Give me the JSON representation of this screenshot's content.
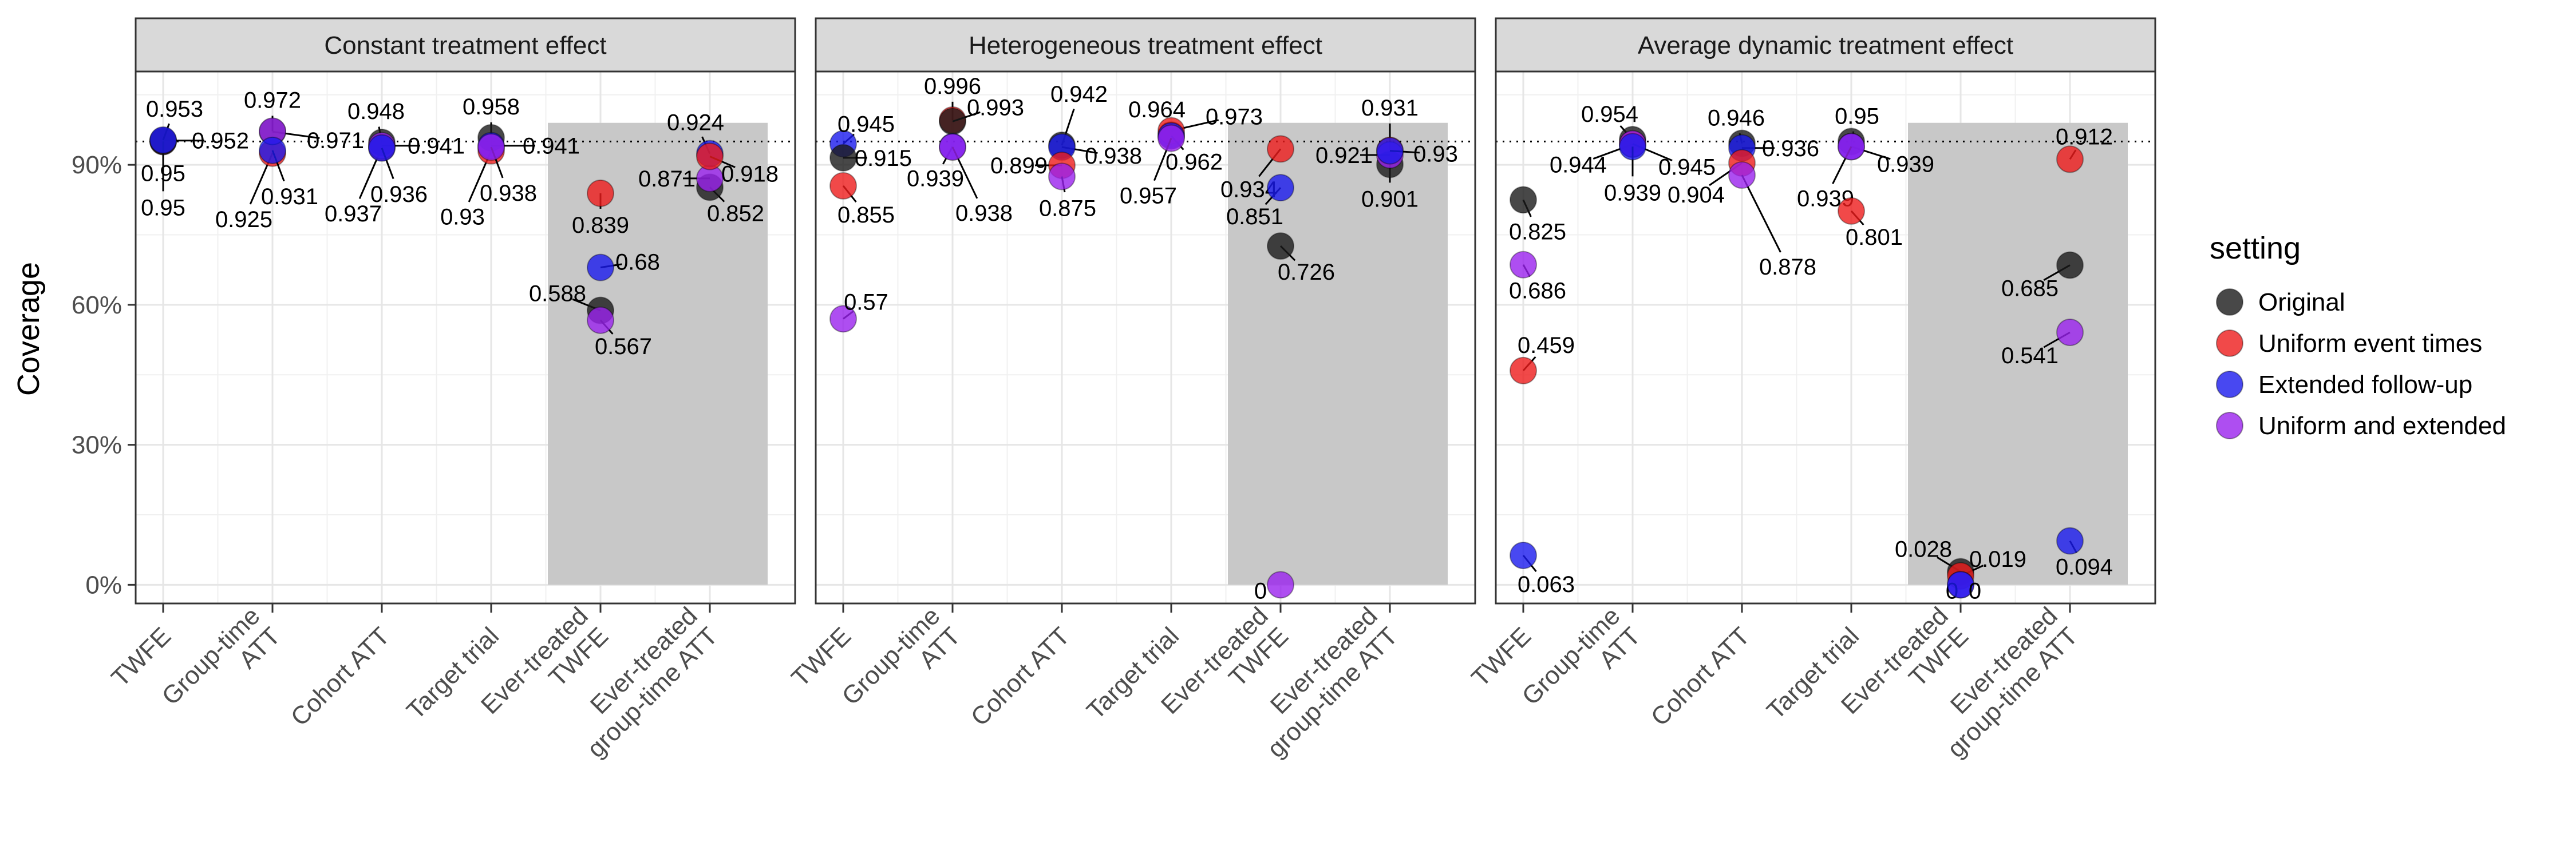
{
  "chart_data": {
    "type": "scatter",
    "ylabel": "Coverage",
    "ylim": [
      -0.04,
      1.1
    ],
    "y_ticks": [
      {
        "value": 0,
        "label": "0%"
      },
      {
        "value": 0.3,
        "label": "30%"
      },
      {
        "value": 0.6,
        "label": "60%"
      },
      {
        "value": 0.9,
        "label": "90%"
      }
    ],
    "reference_line": 0.95,
    "grid": true,
    "legend_position": "right",
    "shaded_categories": [
      4,
      5
    ],
    "categories": [
      [
        "TWFE"
      ],
      [
        "Group-time",
        "ATT"
      ],
      [
        "Cohort ATT"
      ],
      [
        "Target trial"
      ],
      [
        "Ever-treated",
        "TWFE"
      ],
      [
        "Ever-treated",
        "group-time ATT"
      ]
    ],
    "legend": {
      "title": "setting",
      "items": [
        {
          "name": "Original",
          "color": "#1a1a1a"
        },
        {
          "name": "Uniform event times",
          "color": "#ee1c1c"
        },
        {
          "name": "Extended follow-up",
          "color": "#1a1aee"
        },
        {
          "name": "Uniform and extended",
          "color": "#9a22ee"
        }
      ]
    },
    "panels": [
      {
        "title": "Constant treatment effect",
        "points": [
          {
            "cat": 0,
            "s": 1,
            "y": 0.95,
            "label": "0.95",
            "ldx": 0,
            "ldy": 115
          },
          {
            "cat": 0,
            "s": 3,
            "y": 0.952,
            "label": "0.952",
            "ldx": 100,
            "ldy": 0
          },
          {
            "cat": 0,
            "s": 0,
            "y": 0.95,
            "label": "0.95",
            "ldx": 0,
            "ldy": 55
          },
          {
            "cat": 0,
            "s": 2,
            "y": 0.953,
            "label": "0.953",
            "ldx": 20,
            "ldy": -55
          },
          {
            "cat": 1,
            "s": 1,
            "y": 0.925,
            "label": "0.925",
            "ldx": -50,
            "ldy": 115
          },
          {
            "cat": 1,
            "s": 0,
            "y": 0.971,
            "label": "0.971",
            "ldx": 110,
            "ldy": 15
          },
          {
            "cat": 1,
            "s": 3,
            "y": 0.972,
            "label": "0.972",
            "ldx": 0,
            "ldy": -55
          },
          {
            "cat": 1,
            "s": 2,
            "y": 0.931,
            "label": "0.931",
            "ldx": 30,
            "ldy": 80
          },
          {
            "cat": 2,
            "s": 1,
            "y": 0.937,
            "label": "0.937",
            "ldx": -50,
            "ldy": 115
          },
          {
            "cat": 2,
            "s": 0,
            "y": 0.948,
            "label": "0.948",
            "ldx": -10,
            "ldy": -55
          },
          {
            "cat": 2,
            "s": 3,
            "y": 0.941,
            "label": "0.941",
            "ldx": 95,
            "ldy": 0
          },
          {
            "cat": 2,
            "s": 2,
            "y": 0.936,
            "label": "0.936",
            "ldx": 30,
            "ldy": 80
          },
          {
            "cat": 3,
            "s": 1,
            "y": 0.93,
            "label": "0.93",
            "ldx": -50,
            "ldy": 115
          },
          {
            "cat": 3,
            "s": 0,
            "y": 0.958,
            "label": "0.958",
            "ldx": 0,
            "ldy": -55
          },
          {
            "cat": 3,
            "s": 2,
            "y": 0.941,
            "label": "0.941",
            "ldx": 105,
            "ldy": 0
          },
          {
            "cat": 3,
            "s": 3,
            "y": 0.938,
            "label": "0.938",
            "ldx": 30,
            "ldy": 80
          },
          {
            "cat": 4,
            "s": 1,
            "y": 0.839,
            "label": "0.839",
            "ldx": 0,
            "ldy": 55
          },
          {
            "cat": 4,
            "s": 2,
            "y": 0.68,
            "label": "0.68",
            "ldx": 65,
            "ldy": -10
          },
          {
            "cat": 4,
            "s": 0,
            "y": 0.588,
            "label": "0.588",
            "ldx": -75,
            "ldy": -30
          },
          {
            "cat": 4,
            "s": 3,
            "y": 0.567,
            "label": "0.567",
            "ldx": 40,
            "ldy": 45
          },
          {
            "cat": 5,
            "s": 0,
            "y": 0.852,
            "label": "0.852",
            "ldx": 45,
            "ldy": 45
          },
          {
            "cat": 5,
            "s": 3,
            "y": 0.871,
            "label": "0.871",
            "ldx": -75,
            "ldy": 0
          },
          {
            "cat": 5,
            "s": 2,
            "y": 0.924,
            "label": "0.924",
            "ldx": -25,
            "ldy": -55
          },
          {
            "cat": 5,
            "s": 1,
            "y": 0.918,
            "label": "0.918",
            "ldx": 70,
            "ldy": 30
          }
        ]
      },
      {
        "title": "Heterogeneous treatment effect",
        "points": [
          {
            "cat": 0,
            "s": 2,
            "y": 0.945,
            "label": "0.945",
            "ldx": 40,
            "ldy": -35
          },
          {
            "cat": 0,
            "s": 0,
            "y": 0.915,
            "label": "0.915",
            "ldx": 70,
            "ldy": 0
          },
          {
            "cat": 0,
            "s": 1,
            "y": 0.855,
            "label": "0.855",
            "ldx": 40,
            "ldy": 50
          },
          {
            "cat": 0,
            "s": 3,
            "y": 0.57,
            "label": "0.57",
            "ldx": 40,
            "ldy": -30
          },
          {
            "cat": 1,
            "s": 1,
            "y": 0.996,
            "label": "0.996",
            "ldx": 0,
            "ldy": -60
          },
          {
            "cat": 1,
            "s": 0,
            "y": 0.993,
            "label": "0.993",
            "ldx": 75,
            "ldy": -25
          },
          {
            "cat": 1,
            "s": 2,
            "y": 0.939,
            "label": "0.939",
            "ldx": -30,
            "ldy": 55
          },
          {
            "cat": 1,
            "s": 3,
            "y": 0.938,
            "label": "0.938",
            "ldx": 55,
            "ldy": 115
          },
          {
            "cat": 2,
            "s": 0,
            "y": 0.942,
            "label": "0.942",
            "ldx": 30,
            "ldy": -90
          },
          {
            "cat": 2,
            "s": 2,
            "y": 0.938,
            "label": "0.938",
            "ldx": 90,
            "ldy": 15
          },
          {
            "cat": 2,
            "s": 1,
            "y": 0.899,
            "label": "0.899",
            "ldx": -75,
            "ldy": 0
          },
          {
            "cat": 2,
            "s": 3,
            "y": 0.875,
            "label": "0.875",
            "ldx": 10,
            "ldy": 55
          },
          {
            "cat": 3,
            "s": 0,
            "y": 0.964,
            "label": "0.964",
            "ldx": -25,
            "ldy": -45
          },
          {
            "cat": 3,
            "s": 1,
            "y": 0.973,
            "label": "0.973",
            "ldx": 110,
            "ldy": -25
          },
          {
            "cat": 3,
            "s": 2,
            "y": 0.962,
            "label": "0.962",
            "ldx": 40,
            "ldy": 45
          },
          {
            "cat": 3,
            "s": 3,
            "y": 0.957,
            "label": "0.957",
            "ldx": -40,
            "ldy": 100
          },
          {
            "cat": 4,
            "s": 1,
            "y": 0.934,
            "label": "0.934",
            "ldx": -55,
            "ldy": 70
          },
          {
            "cat": 4,
            "s": 2,
            "y": 0.851,
            "label": "0.851",
            "ldx": -45,
            "ldy": 50
          },
          {
            "cat": 4,
            "s": 0,
            "y": 0.726,
            "label": "0.726",
            "ldx": 45,
            "ldy": 45
          },
          {
            "cat": 4,
            "s": 3,
            "y": 0,
            "label": "0",
            "ldx": -35,
            "ldy": 10
          },
          {
            "cat": 5,
            "s": 1,
            "y": 0.931,
            "label": "0.931",
            "ldx": 0,
            "ldy": -75
          },
          {
            "cat": 5,
            "s": 0,
            "y": 0.901,
            "label": "0.901",
            "ldx": 0,
            "ldy": 60
          },
          {
            "cat": 5,
            "s": 3,
            "y": 0.921,
            "label": "0.921",
            "ldx": -80,
            "ldy": 0
          },
          {
            "cat": 5,
            "s": 2,
            "y": 0.93,
            "label": "0.93",
            "ldx": 80,
            "ldy": 5
          }
        ]
      },
      {
        "title": "Average dynamic treatment effect",
        "points": [
          {
            "cat": 0,
            "s": 0,
            "y": 0.825,
            "label": "0.825",
            "ldx": 25,
            "ldy": 55
          },
          {
            "cat": 0,
            "s": 3,
            "y": 0.686,
            "label": "0.686",
            "ldx": 25,
            "ldy": 45
          },
          {
            "cat": 0,
            "s": 1,
            "y": 0.459,
            "label": "0.459",
            "ldx": 40,
            "ldy": -45
          },
          {
            "cat": 0,
            "s": 2,
            "y": 0.063,
            "label": "0.063",
            "ldx": 40,
            "ldy": 50
          },
          {
            "cat": 1,
            "s": 0,
            "y": 0.954,
            "label": "0.954",
            "ldx": -40,
            "ldy": -45
          },
          {
            "cat": 1,
            "s": 1,
            "y": 0.944,
            "label": "0.944",
            "ldx": -95,
            "ldy": 35
          },
          {
            "cat": 1,
            "s": 3,
            "y": 0.945,
            "label": "0.945",
            "ldx": 95,
            "ldy": 40
          },
          {
            "cat": 1,
            "s": 2,
            "y": 0.939,
            "label": "0.939",
            "ldx": 0,
            "ldy": 80
          },
          {
            "cat": 2,
            "s": 0,
            "y": 0.946,
            "label": "0.946",
            "ldx": -10,
            "ldy": -45
          },
          {
            "cat": 2,
            "s": 2,
            "y": 0.936,
            "label": "0.936",
            "ldx": 85,
            "ldy": 0
          },
          {
            "cat": 2,
            "s": 1,
            "y": 0.904,
            "label": "0.904",
            "ldx": -80,
            "ldy": 55
          },
          {
            "cat": 2,
            "s": 3,
            "y": 0.878,
            "label": "0.878",
            "ldx": 80,
            "ldy": 160
          },
          {
            "cat": 3,
            "s": 0,
            "y": 0.95,
            "label": "0.95",
            "ldx": 10,
            "ldy": -45
          },
          {
            "cat": 3,
            "s": 2,
            "y": 0.939,
            "label": "0.939",
            "ldx": 95,
            "ldy": 30
          },
          {
            "cat": 3,
            "s": 3,
            "y": 0.939,
            "label": "0.939",
            "ldx": -45,
            "ldy": 90
          },
          {
            "cat": 3,
            "s": 1,
            "y": 0.801,
            "label": "0.801",
            "ldx": 40,
            "ldy": 45
          },
          {
            "cat": 4,
            "s": 0,
            "y": 0.028,
            "label": "0.028",
            "ldx": -65,
            "ldy": -40
          },
          {
            "cat": 4,
            "s": 1,
            "y": 0.019,
            "label": "0.019",
            "ldx": 65,
            "ldy": -30
          },
          {
            "cat": 4,
            "s": 3,
            "y": 0,
            "label": "0",
            "ldx": -15,
            "ldy": 10
          },
          {
            "cat": 4,
            "s": 2,
            "y": 0,
            "label": "0",
            "ldx": 25,
            "ldy": 10
          },
          {
            "cat": 5,
            "s": 1,
            "y": 0.912,
            "label": "0.912",
            "ldx": 25,
            "ldy": -40
          },
          {
            "cat": 5,
            "s": 0,
            "y": 0.685,
            "label": "0.685",
            "ldx": -70,
            "ldy": 40
          },
          {
            "cat": 5,
            "s": 3,
            "y": 0.541,
            "label": "0.541",
            "ldx": -70,
            "ldy": 40
          },
          {
            "cat": 5,
            "s": 2,
            "y": 0.094,
            "label": "0.094",
            "ldx": 25,
            "ldy": 45
          }
        ]
      }
    ]
  }
}
